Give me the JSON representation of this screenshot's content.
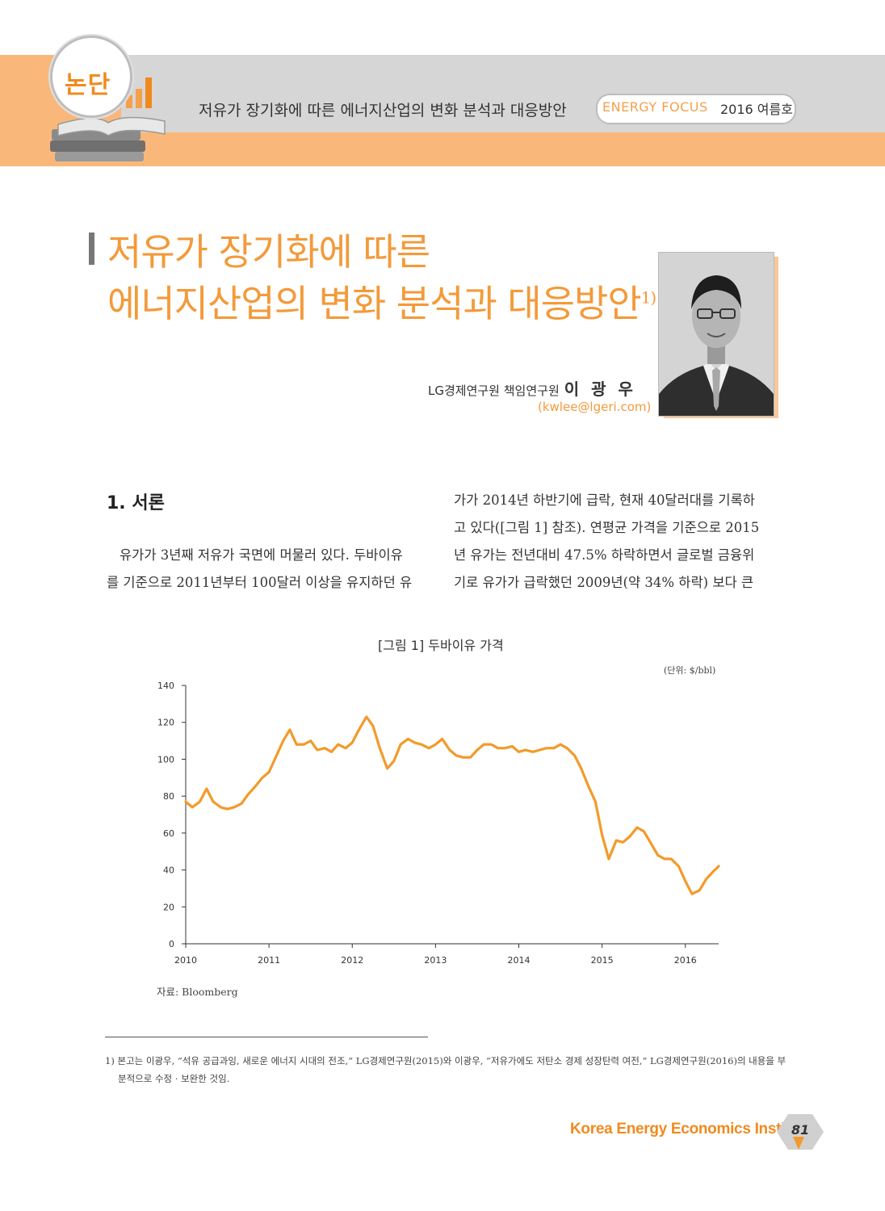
{
  "header": {
    "badge": "논단",
    "title": "저유가 장기화에 따른 에너지산업의 변화 분석과 대응방안",
    "series": "ENERGY FOCUS",
    "issue": "2016 여름호"
  },
  "article": {
    "title_line1": "저유가 장기화에 따른",
    "title_line2": "에너지산업의 변화 분석과 대응방안",
    "title_sup": "1)",
    "author_affiliation": "LG경제연구원 책임연구원",
    "author_name": "이 광 우",
    "author_email": "(kwlee@lgeri.com)"
  },
  "body": {
    "section_heading": "1. 서론",
    "left_col": [
      "유가가 3년째 저유가 국면에 머물러 있다. 두바이유",
      "를 기준으로 2011년부터 100달러 이상을 유지하던 유"
    ],
    "right_col": [
      "가가 2014년 하반기에 급락, 현재 40달러대를 기록하",
      "고 있다([그림 1] 참조). 연평균 가격을 기준으로 2015",
      "년 유가는 전년대비 47.5% 하락하면서 글로벌 금융위",
      "기로 유가가 급락했던 2009년(약 34% 하락) 보다 큰"
    ]
  },
  "figure": {
    "caption": "[그림 1] 두바이유 가격",
    "unit": "(단위: $/bbl)",
    "source": "자료: Bloomberg"
  },
  "chart_data": {
    "type": "line",
    "title": "[그림 1] 두바이유 가격",
    "xlabel": "",
    "ylabel": "",
    "xlim": [
      2010,
      2016.4
    ],
    "ylim": [
      0,
      140
    ],
    "y_ticks": [
      0,
      20,
      40,
      60,
      80,
      100,
      120,
      140
    ],
    "x_ticks": [
      2010,
      2011,
      2012,
      2013,
      2014,
      2015,
      2016
    ],
    "grid": false,
    "series": [
      {
        "name": "",
        "color": "#f39a2a",
        "x": [
          2010.0,
          2010.08,
          2010.17,
          2010.25,
          2010.33,
          2010.42,
          2010.5,
          2010.58,
          2010.67,
          2010.75,
          2010.83,
          2010.92,
          2011.0,
          2011.08,
          2011.17,
          2011.25,
          2011.33,
          2011.42,
          2011.5,
          2011.58,
          2011.67,
          2011.75,
          2011.83,
          2011.92,
          2012.0,
          2012.08,
          2012.17,
          2012.25,
          2012.33,
          2012.42,
          2012.5,
          2012.58,
          2012.67,
          2012.75,
          2012.83,
          2012.92,
          2013.0,
          2013.08,
          2013.17,
          2013.25,
          2013.33,
          2013.42,
          2013.5,
          2013.58,
          2013.67,
          2013.75,
          2013.83,
          2013.92,
          2014.0,
          2014.08,
          2014.17,
          2014.25,
          2014.33,
          2014.42,
          2014.5,
          2014.58,
          2014.67,
          2014.75,
          2014.83,
          2014.92,
          2015.0,
          2015.08,
          2015.17,
          2015.25,
          2015.33,
          2015.42,
          2015.5,
          2015.58,
          2015.67,
          2015.75,
          2015.83,
          2015.92,
          2016.0,
          2016.08,
          2016.17,
          2016.25,
          2016.33,
          2016.4
        ],
        "values": [
          77,
          74,
          77,
          84,
          77,
          74,
          73,
          74,
          76,
          81,
          85,
          90,
          93,
          101,
          110,
          116,
          108,
          108,
          110,
          105,
          106,
          104,
          108,
          106,
          109,
          116,
          123,
          118,
          106,
          95,
          99,
          108,
          111,
          109,
          108,
          106,
          108,
          111,
          105,
          102,
          101,
          101,
          105,
          108,
          108,
          106,
          106,
          107,
          104,
          105,
          104,
          105,
          106,
          106,
          108,
          106,
          102,
          95,
          86,
          77,
          59,
          46,
          56,
          55,
          58,
          63,
          61,
          55,
          48,
          46,
          46,
          42,
          34,
          27,
          29,
          35,
          39,
          42
        ]
      }
    ]
  },
  "footnote": {
    "lines": [
      "1) 본고는 이광우, “석유 공급과잉, 새로운 에너지 시대의 전조,” LG경제연구원(2015)와 이광우, “저유가에도 저탄소 경제 성장탄력 여전,” LG경제연구원(2016)의 내용을 부",
      "분적으로 수정 · 보완한 것임."
    ]
  },
  "footer": {
    "institute": "Korea Energy Economics Institute",
    "page": "81"
  }
}
